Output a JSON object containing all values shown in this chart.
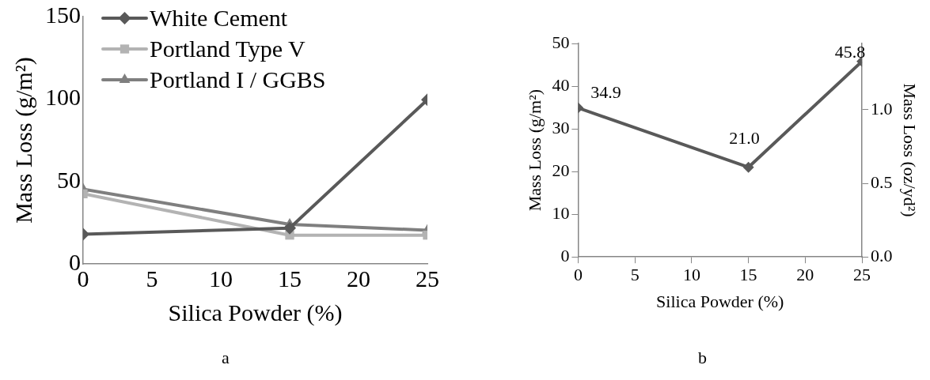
{
  "chart_data": [
    {
      "type": "line",
      "xlabel": "Silica Powder (%)",
      "ylabel": "Mass Loss (g/m²)",
      "x": [
        0,
        15,
        25
      ],
      "xlim": [
        0,
        25
      ],
      "xticks": [
        0,
        5,
        10,
        15,
        20,
        25
      ],
      "ylim": [
        0,
        150
      ],
      "yticks": [
        0,
        50,
        100,
        150
      ],
      "grid": false,
      "legend": "top left",
      "annotations": [
        "a"
      ],
      "series": [
        {
          "name": "White Cement",
          "color": "#595959",
          "marker": "diamond",
          "values": [
            18,
            21.7,
            99.6
          ]
        },
        {
          "name": "Portland Type V",
          "color": "#b3b3b3",
          "marker": "square",
          "values": [
            42.5,
            17.4,
            17.4
          ]
        },
        {
          "name": "Portland I / GGBS",
          "color": "#7f7f7f",
          "marker": "triangle",
          "values": [
            45.3,
            24,
            20.4
          ]
        }
      ]
    },
    {
      "type": "line",
      "xlabel": "Silica Powder (%)",
      "ylabel": "Mass Loss (g/m²)",
      "y2label": "Mass Loss (oz/yd²)",
      "x": [
        0,
        15,
        25
      ],
      "xlim": [
        0,
        25
      ],
      "xticks": [
        0,
        5,
        10,
        15,
        20,
        25
      ],
      "ylim": [
        0,
        50
      ],
      "yticks": [
        0,
        10,
        20,
        30,
        40,
        50
      ],
      "y2lim": [
        0,
        1.45
      ],
      "y2ticks": [
        {
          "value": 0,
          "label": "0.0"
        },
        {
          "value": 0.5,
          "label": "0.5"
        },
        {
          "value": 1,
          "label": "1.0"
        }
      ],
      "grid": false,
      "marker": "diamond",
      "annotations": [
        "b"
      ],
      "series": [
        {
          "color": "#595959",
          "values": [
            34.9,
            21.0,
            45.8
          ],
          "value_labels": [
            "34.9",
            "21.0",
            "45.8"
          ]
        }
      ]
    }
  ]
}
